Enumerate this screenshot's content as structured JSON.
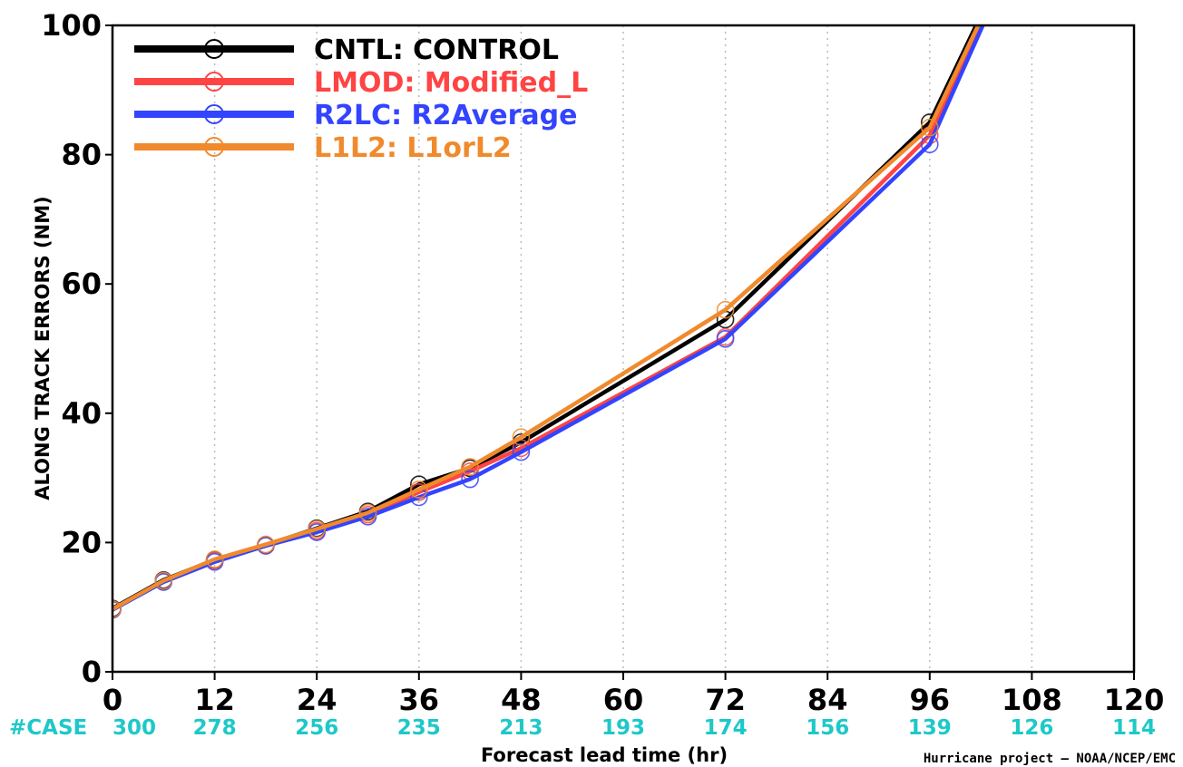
{
  "colors": {
    "case_counts": "#1ec8c8",
    "grid": "#bbbbbb",
    "axis": "#000000"
  },
  "footer": {
    "case_prefix": "#CASE",
    "credit": "Hurricane project — NOAA/NCEP/EMC"
  },
  "chart_data": {
    "type": "line",
    "title": "",
    "xlabel": "Forecast lead time (hr)",
    "ylabel": "ALONG TRACK ERRORS (NM)",
    "xlim": [
      0,
      120
    ],
    "ylim": [
      0,
      100
    ],
    "x_ticks": [
      0,
      12,
      24,
      36,
      48,
      60,
      72,
      84,
      96,
      108,
      120
    ],
    "y_ticks": [
      0,
      20,
      40,
      60,
      80,
      100
    ],
    "grid": "vertical dotted",
    "legend_position": "top-left",
    "case_counts": [
      {
        "x": 0,
        "n": "300"
      },
      {
        "x": 12,
        "n": "278"
      },
      {
        "x": 24,
        "n": "256"
      },
      {
        "x": 36,
        "n": "235"
      },
      {
        "x": 48,
        "n": "213"
      },
      {
        "x": 60,
        "n": "193"
      },
      {
        "x": 72,
        "n": "174"
      },
      {
        "x": 84,
        "n": "156"
      },
      {
        "x": 96,
        "n": "139"
      },
      {
        "x": 108,
        "n": "126"
      },
      {
        "x": 120,
        "n": "114"
      }
    ],
    "x": [
      0,
      6,
      12,
      18,
      24,
      30,
      36,
      42,
      48,
      72,
      96,
      108
    ],
    "series": [
      {
        "name": "CNTL:  CONTROL",
        "color": "#000000",
        "values": [
          9.8,
          14.2,
          17.3,
          19.6,
          22.2,
          24.8,
          29.0,
          31.5,
          35.5,
          54.5,
          85.0,
          118
        ]
      },
      {
        "name": "LMOD:  Modified_L",
        "color": "#ff4444",
        "values": [
          9.6,
          14.0,
          17.2,
          19.5,
          21.8,
          24.3,
          27.8,
          31.0,
          34.6,
          51.8,
          83.0,
          118
        ]
      },
      {
        "name": "R2LC:  R2Average",
        "color": "#3344ff",
        "values": [
          9.6,
          13.9,
          17.0,
          19.5,
          21.6,
          24.0,
          27.0,
          29.8,
          34.0,
          51.5,
          81.6,
          117
        ]
      },
      {
        "name": "L1L2:  L1orL2",
        "color": "#f08a2c",
        "values": [
          9.7,
          14.1,
          17.4,
          19.7,
          22.1,
          24.6,
          28.2,
          31.7,
          36.3,
          56.0,
          84.2,
          117.5
        ]
      }
    ]
  }
}
